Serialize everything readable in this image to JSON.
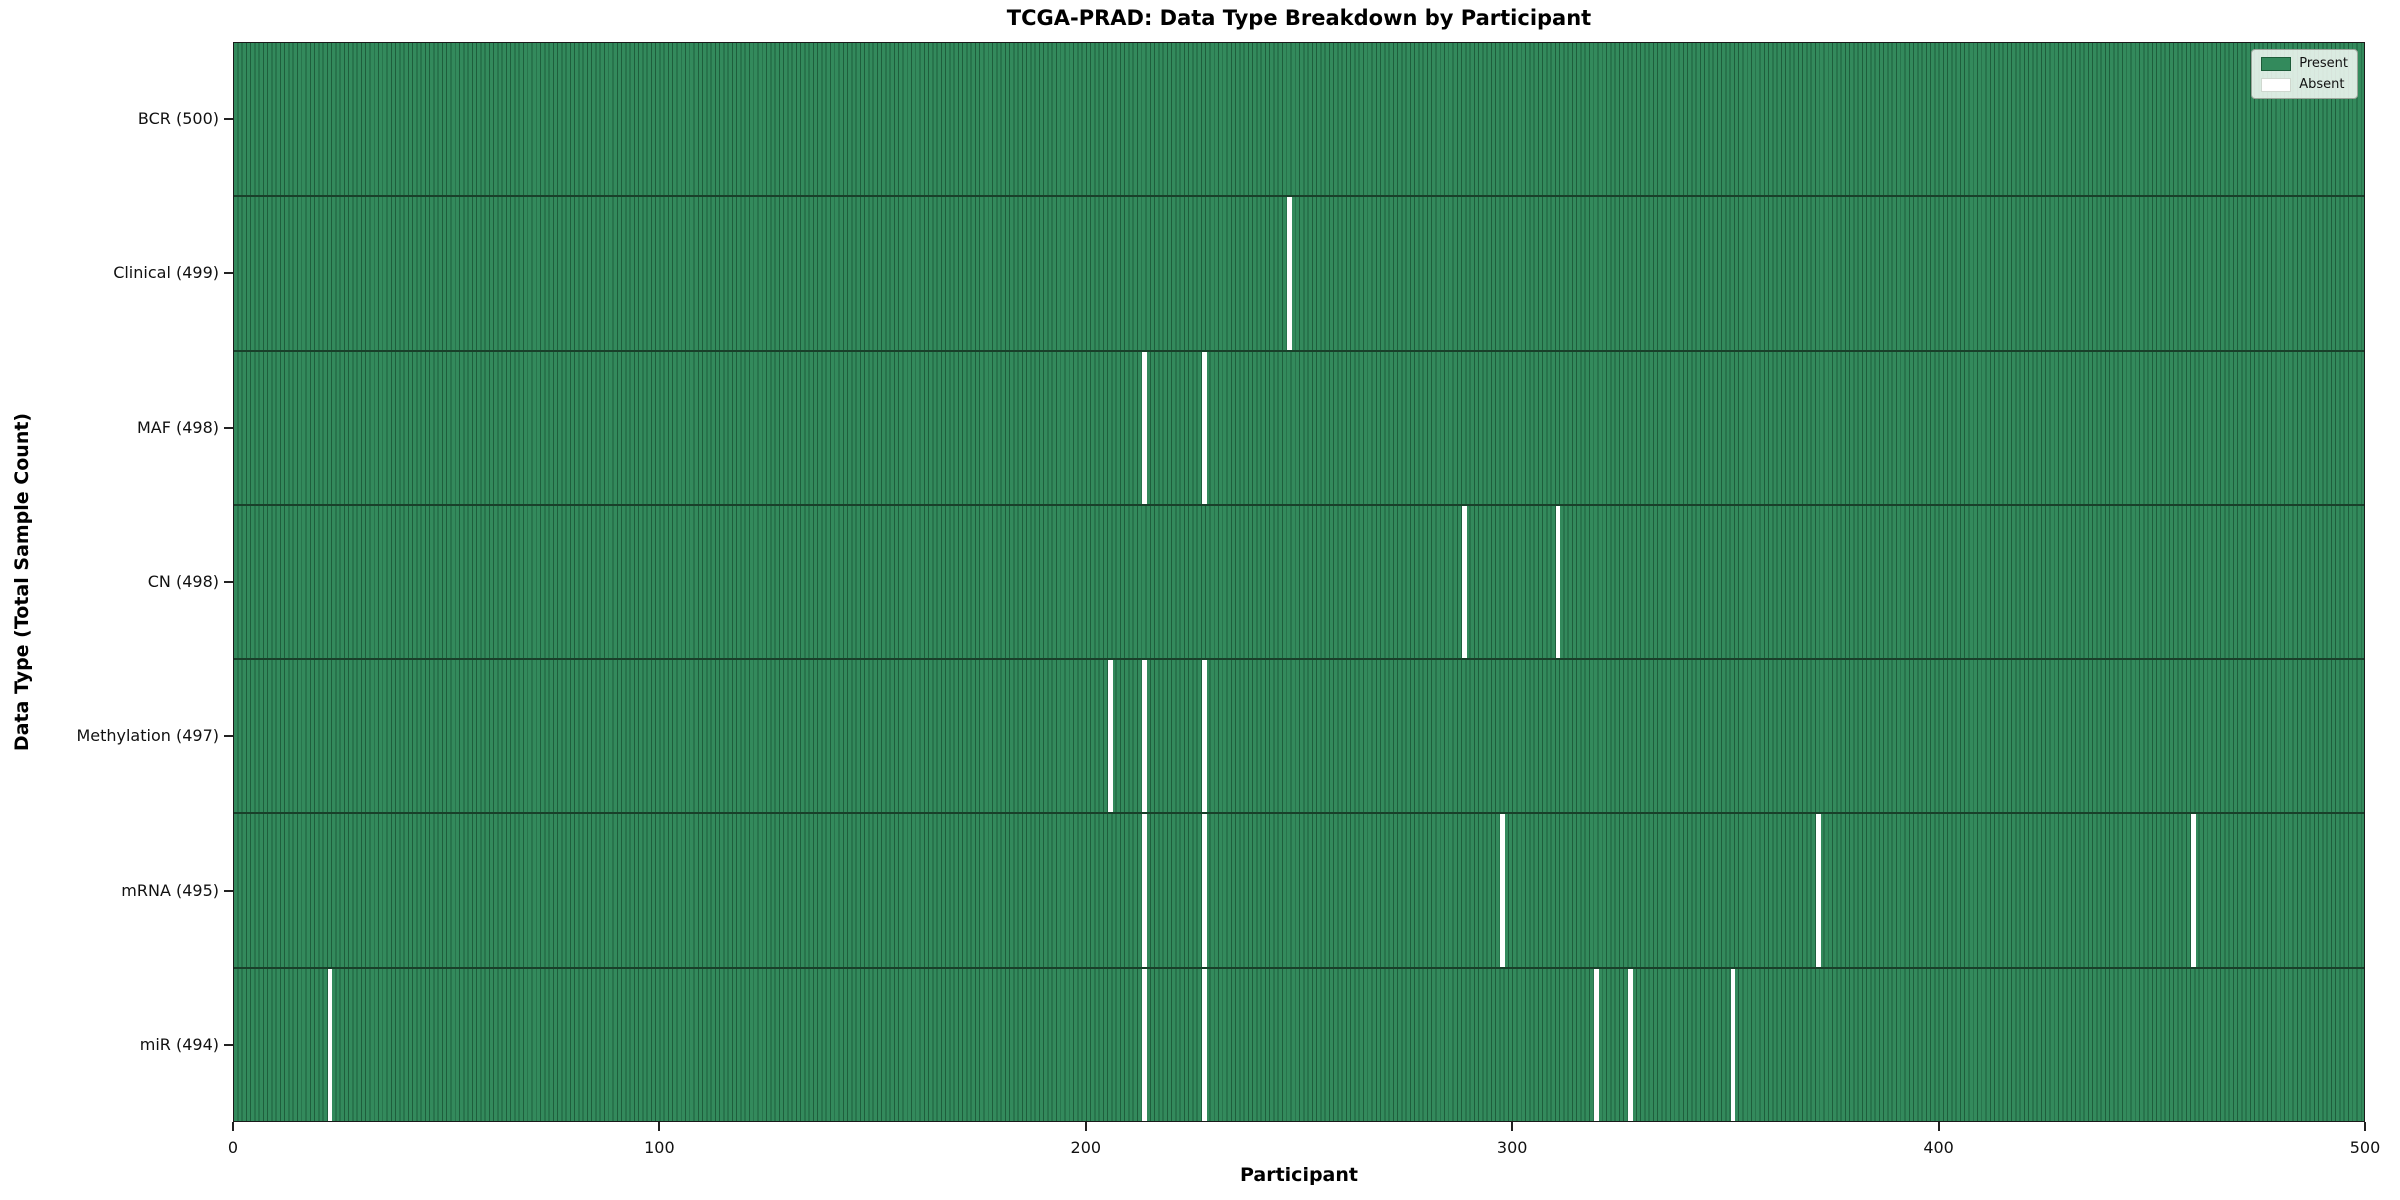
{
  "title": "TCGA-PRAD: Data Type Breakdown by Participant",
  "xlabel": "Participant",
  "ylabel": "Data Type (Total Sample Count)",
  "legend": {
    "present_label": "Present",
    "absent_label": "Absent"
  },
  "colors": {
    "present_fill": "#338a5c",
    "present_edge": "#1e5e3c",
    "absent_fill": "#ffffff",
    "row_separator": "#19402a"
  },
  "chart_data": {
    "type": "heatmap",
    "title": "TCGA-PRAD: Data Type Breakdown by Participant",
    "xlabel": "Participant",
    "ylabel": "Data Type (Total Sample Count)",
    "x_range": [
      0,
      500
    ],
    "x_ticks": [
      0,
      100,
      200,
      300,
      400,
      500
    ],
    "n_participants": 500,
    "legend_position": "upper right",
    "grid": false,
    "rows": [
      {
        "label": "BCR (500)",
        "data_type": "BCR",
        "total_sample_count": 500,
        "absent_participants": []
      },
      {
        "label": "Clinical (499)",
        "data_type": "Clinical",
        "total_sample_count": 499,
        "absent_participants": [
          247
        ]
      },
      {
        "label": "MAF (498)",
        "data_type": "MAF",
        "total_sample_count": 498,
        "absent_participants": [
          213,
          227
        ]
      },
      {
        "label": "CN (498)",
        "data_type": "CN",
        "total_sample_count": 498,
        "absent_participants": [
          288,
          310
        ]
      },
      {
        "label": "Methylation (497)",
        "data_type": "Methylation",
        "total_sample_count": 497,
        "absent_participants": [
          205,
          213,
          227
        ]
      },
      {
        "label": "mRNA (495)",
        "data_type": "mRNA",
        "total_sample_count": 495,
        "absent_participants": [
          213,
          227,
          297,
          371,
          459
        ]
      },
      {
        "label": "miR (494)",
        "data_type": "miR",
        "total_sample_count": 494,
        "absent_participants": [
          22,
          213,
          227,
          319,
          327,
          351
        ]
      }
    ]
  }
}
